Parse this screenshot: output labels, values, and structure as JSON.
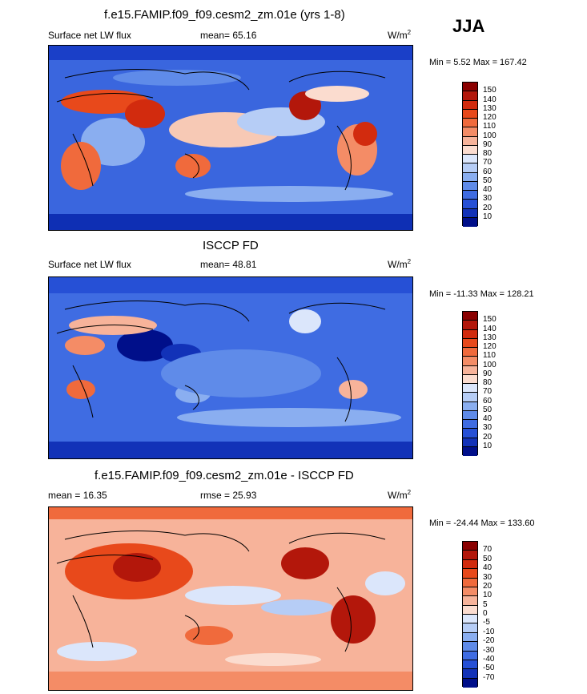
{
  "season": "JJA",
  "unit_base": "W/m",
  "unit_sup": "2",
  "panels": [
    {
      "title": "f.e15.FAMIP.f09_f09.cesm2_zm.01e (yrs 1-8)",
      "left_label": "Surface net LW flux",
      "stat_label": "mean=  65.16",
      "minmax": "Min =   5.52 Max = 167.42",
      "levels": [
        "150",
        "140",
        "130",
        "120",
        "110",
        "100",
        "90",
        "80",
        "70",
        "60",
        "50",
        "40",
        "30",
        "20",
        "10"
      ],
      "colors": [
        "#8b0000",
        "#b3170b",
        "#d22b0e",
        "#e8491b",
        "#f06a3c",
        "#f48c66",
        "#f7b39a",
        "#fbdccf",
        "#dbe6fb",
        "#b6cdf6",
        "#8aaef0",
        "#5f8be9",
        "#3f6ce2",
        "#2650d6",
        "#1232b8",
        "#000f8a"
      ]
    },
    {
      "title": "ISCCP FD",
      "left_label": "Surface net LW flux",
      "stat_label": "mean=  48.81",
      "minmax": "Min = -11.33 Max = 128.21",
      "levels": [
        "150",
        "140",
        "130",
        "120",
        "110",
        "100",
        "90",
        "80",
        "70",
        "60",
        "50",
        "40",
        "30",
        "20",
        "10"
      ],
      "colors": [
        "#8b0000",
        "#b3170b",
        "#d22b0e",
        "#e8491b",
        "#f06a3c",
        "#f48c66",
        "#f7b39a",
        "#fbdccf",
        "#dbe6fb",
        "#b6cdf6",
        "#8aaef0",
        "#5f8be9",
        "#3f6ce2",
        "#2650d6",
        "#1232b8",
        "#000f8a"
      ]
    },
    {
      "title": "f.e15.FAMIP.f09_f09.cesm2_zm.01e - ISCCP FD",
      "left_label": "mean =  16.35",
      "stat_label": "rmse =  25.93",
      "minmax": "Min = -24.44 Max = 133.60",
      "levels": [
        "70",
        "50",
        "40",
        "30",
        "20",
        "10",
        "5",
        "0",
        "-5",
        "-10",
        "-20",
        "-30",
        "-40",
        "-50",
        "-70"
      ],
      "colors": [
        "#8b0000",
        "#b3170b",
        "#d22b0e",
        "#e8491b",
        "#f06a3c",
        "#f48c66",
        "#f7b39a",
        "#fbdccf",
        "#dbe6fb",
        "#b6cdf6",
        "#8aaef0",
        "#5f8be9",
        "#3f6ce2",
        "#2650d6",
        "#1232b8",
        "#000f8a"
      ]
    }
  ]
}
